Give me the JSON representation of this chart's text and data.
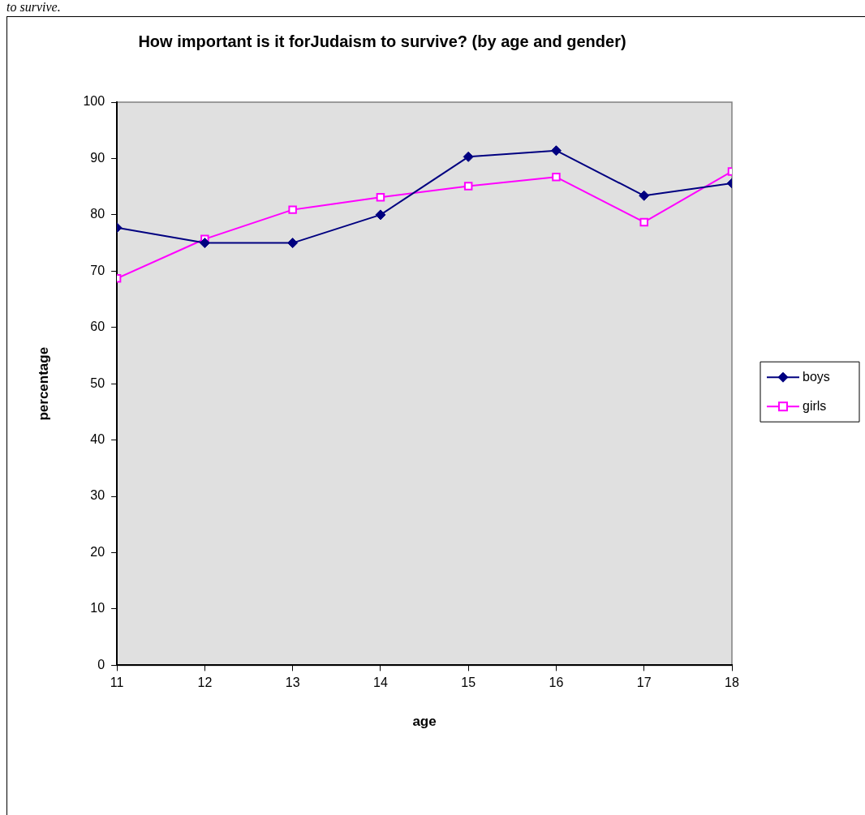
{
  "chart_data": {
    "type": "line",
    "title": "How important is it forJudaism to survive? (by age and gender)",
    "xlabel": "age",
    "ylabel": "percentage",
    "annotations": [
      "to survive."
    ],
    "x": [
      11,
      12,
      13,
      14,
      15,
      16,
      17,
      18
    ],
    "xlim": [
      11,
      18
    ],
    "xticks": [
      11,
      12,
      13,
      14,
      15,
      16,
      17,
      18
    ],
    "ylim": [
      0,
      100
    ],
    "yticks": [
      0,
      10,
      20,
      30,
      40,
      50,
      60,
      70,
      80,
      90,
      100
    ],
    "series": [
      {
        "name": "boys",
        "color": "#000080",
        "marker": "diamond",
        "values": [
          77.7,
          75,
          75,
          80,
          90.3,
          91.4,
          83.4,
          85.6
        ]
      },
      {
        "name": "girls",
        "color": "#ff00ff",
        "marker": "square",
        "values": [
          68.7,
          75.7,
          80.9,
          83.1,
          85.1,
          86.7,
          78.7,
          87.7
        ]
      }
    ],
    "grid": false,
    "legend": "right",
    "line_style": "solid"
  }
}
